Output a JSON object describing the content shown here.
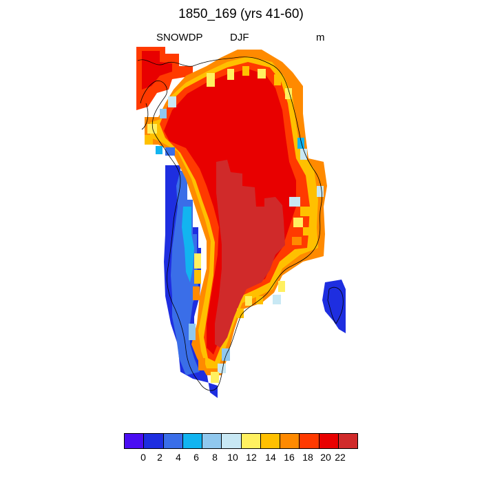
{
  "title": "1850_169 (yrs 41-60)",
  "variable": "SNOWDP",
  "season": "DJF",
  "units": "m",
  "colorbar": {
    "colors": [
      "#4a0df2",
      "#1e2ee0",
      "#3a6ee8",
      "#12b4f0",
      "#90c8ee",
      "#c8e8f4",
      "#fff060",
      "#ffc000",
      "#ff8a00",
      "#ff3a00",
      "#e80000",
      "#d02a2a"
    ],
    "labels": [
      "0",
      "2",
      "4",
      "6",
      "8",
      "10",
      "12",
      "14",
      "16",
      "18",
      "20",
      "22"
    ]
  },
  "map_data": {
    "type": "filled-grid",
    "region": "Greenland",
    "levels": [
      0,
      2,
      4,
      6,
      8,
      10,
      12,
      14,
      16,
      18,
      20,
      22
    ],
    "classes": {
      "deep_interior": 22,
      "ice_sheet": 20,
      "margin_warm": 18,
      "margin_mid": 14,
      "margin_cool": 10,
      "coast_low": 4,
      "coast_lowest": 2
    }
  }
}
